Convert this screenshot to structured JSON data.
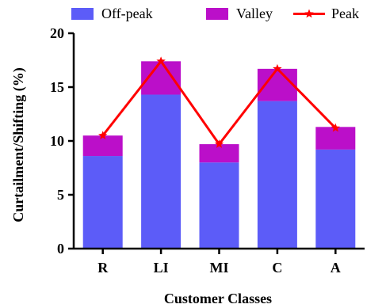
{
  "chart_data": {
    "type": "bar",
    "title": "",
    "xlabel": "Customer Classes",
    "ylabel": "Curtailment/Shifting (%)",
    "categories": [
      "R",
      "LI",
      "MI",
      "C",
      "A"
    ],
    "ylim": [
      0,
      20
    ],
    "yticks": [
      0,
      5,
      10,
      15,
      20
    ],
    "legend_position": "top",
    "series": [
      {
        "name": "Off-peak",
        "kind": "bar",
        "stacked": true,
        "color": "#5c5cf8",
        "values": [
          8.6,
          14.3,
          8.0,
          13.7,
          9.2
        ]
      },
      {
        "name": "Valley",
        "kind": "bar",
        "stacked": true,
        "color": "#bb0fc9",
        "values": [
          1.9,
          3.1,
          1.7,
          3.0,
          2.1
        ]
      },
      {
        "name": "Peak",
        "kind": "line",
        "marker": "star",
        "color": "#ff0000",
        "values": [
          10.5,
          17.4,
          9.7,
          16.7,
          11.2
        ]
      }
    ]
  }
}
